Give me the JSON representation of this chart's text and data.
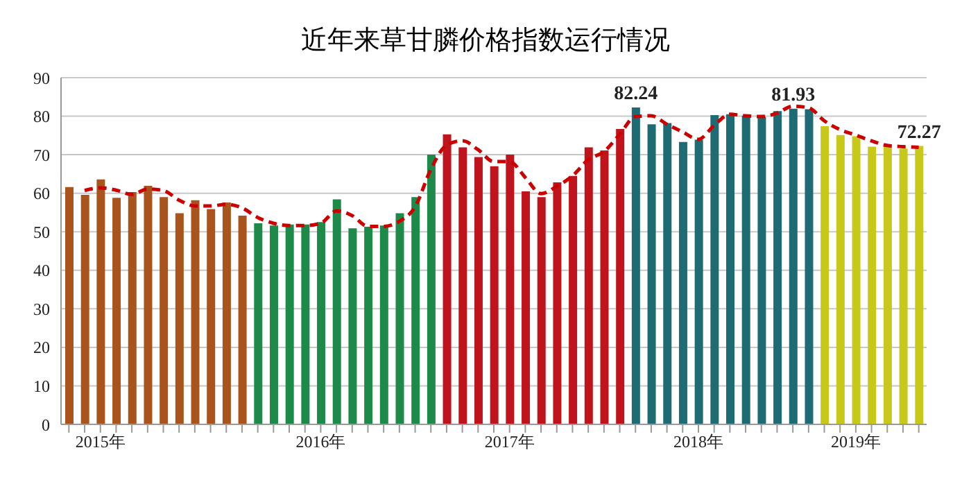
{
  "chart_data": {
    "type": "bar",
    "title": "近年来草甘膦价格指数运行情况",
    "categories": [
      null,
      null,
      "2015年",
      null,
      null,
      null,
      null,
      null,
      null,
      null,
      null,
      null,
      null,
      null,
      null,
      null,
      "2016年",
      null,
      null,
      null,
      null,
      null,
      null,
      null,
      null,
      null,
      null,
      null,
      "2017年",
      null,
      null,
      null,
      null,
      null,
      null,
      null,
      null,
      null,
      null,
      null,
      "2018年",
      null,
      null,
      null,
      null,
      null,
      null,
      null,
      null,
      null,
      "2019年",
      null,
      null,
      null,
      null
    ],
    "series": [
      {
        "values": [
          61.6,
          59.6,
          63.6,
          58.8,
          60.3,
          61.9,
          59.0,
          54.8,
          58.2,
          55.9,
          57.6,
          54.2,
          52.2,
          51.6,
          51.9,
          51.9,
          52.5,
          58.4,
          50.9,
          51.3,
          51.6,
          54.8,
          59.0,
          70.0,
          75.3,
          71.9,
          69.4,
          67.0,
          70.0,
          60.5,
          59.0,
          62.8,
          64.5,
          71.9,
          71.1,
          76.7,
          82.24,
          77.9,
          78.2,
          73.3,
          73.9,
          80.3,
          80.5,
          80.1,
          79.8,
          81.3,
          81.93,
          81.8,
          77.4,
          75.1,
          74.8,
          72.1,
          72.3,
          71.6,
          72.27
        ],
        "colors": [
          "#a8541c",
          "#a8541c",
          "#a8541c",
          "#a8541c",
          "#a8541c",
          "#a8541c",
          "#a8541c",
          "#a8541c",
          "#a8541c",
          "#a8541c",
          "#a8541c",
          "#a8541c",
          "#1e8a4a",
          "#1e8a4a",
          "#1e8a4a",
          "#1e8a4a",
          "#1e8a4a",
          "#1e8a4a",
          "#1e8a4a",
          "#1e8a4a",
          "#1e8a4a",
          "#1e8a4a",
          "#1e8a4a",
          "#1e8a4a",
          "#c0141c",
          "#c0141c",
          "#c0141c",
          "#c0141c",
          "#c0141c",
          "#c0141c",
          "#c0141c",
          "#c0141c",
          "#c0141c",
          "#c0141c",
          "#c0141c",
          "#c0141c",
          "#1f6b73",
          "#1f6b73",
          "#1f6b73",
          "#1f6b73",
          "#1f6b73",
          "#1f6b73",
          "#1f6b73",
          "#1f6b73",
          "#1f6b73",
          "#1f6b73",
          "#1f6b73",
          "#1f6b73",
          "#c8c81a",
          "#c8c81a",
          "#c8c81a",
          "#c8c81a",
          "#c8c81a",
          "#c8c81a",
          "#c8c81a"
        ],
        "value_labels": [
          null,
          null,
          null,
          null,
          null,
          null,
          null,
          null,
          null,
          null,
          null,
          null,
          null,
          null,
          null,
          null,
          null,
          null,
          null,
          null,
          null,
          null,
          null,
          null,
          null,
          null,
          null,
          null,
          null,
          null,
          null,
          null,
          null,
          null,
          null,
          null,
          "82.24",
          null,
          null,
          null,
          null,
          null,
          null,
          null,
          null,
          null,
          "81.93",
          null,
          null,
          null,
          null,
          null,
          null,
          null,
          "72.27"
        ]
      },
      {
        "type": "line",
        "color": "#cc0000",
        "line_style": "dashed",
        "marker": "none",
        "values": [
          null,
          60.7,
          61.4,
          60.8,
          59.7,
          61.1,
          60.7,
          58.2,
          56.7,
          56.7,
          57.1,
          56.2,
          53.7,
          52.2,
          51.6,
          51.6,
          52.2,
          55.4,
          54.2,
          51.4,
          51.4,
          52.7,
          56.5,
          66.2,
          72.5,
          73.6,
          71.3,
          68.2,
          68.2,
          64.1,
          59.9,
          61.8,
          64.5,
          68.7,
          70.8,
          75.3,
          79.9,
          80.1,
          77.9,
          75.9,
          74.0,
          77.6,
          80.5,
          80.1,
          79.9,
          80.8,
          82.6,
          82.2,
          78.8,
          76.5,
          75.1,
          73.6,
          72.4,
          72.1,
          71.9
        ]
      }
    ],
    "ylim": [
      0,
      90
    ],
    "yticks": [
      0,
      10,
      20,
      30,
      40,
      50,
      60,
      70,
      80,
      90
    ],
    "grid": "y"
  }
}
